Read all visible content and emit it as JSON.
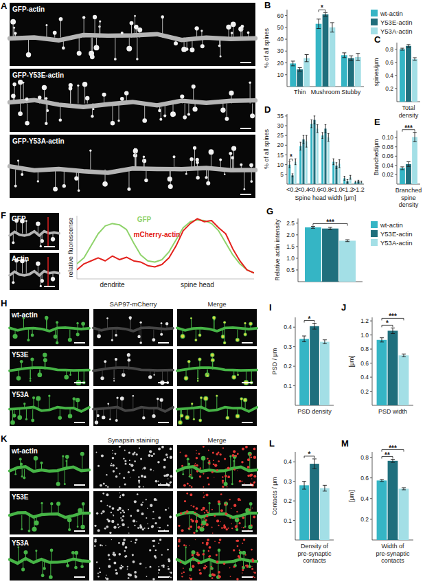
{
  "chart_data": [
    {
      "panel_label": "B",
      "type": "bar",
      "ylabel": "% of all spines",
      "categories": [
        "Thin",
        "Mushroom",
        "Stubby"
      ],
      "series": [
        {
          "name": "wt-actin",
          "color": "#35b5c5",
          "values": [
            19.5,
            53,
            26.5
          ],
          "errors": [
            2,
            4,
            2
          ]
        },
        {
          "name": "Y53E-actin",
          "color": "#1f6f7d",
          "values": [
            14.5,
            61,
            24
          ],
          "errors": [
            1.5,
            1.5,
            2
          ]
        },
        {
          "name": "Y53A-actin",
          "color": "#a3dfe6",
          "values": [
            24,
            50,
            25
          ],
          "errors": [
            3,
            4,
            3
          ]
        }
      ],
      "ylim": [
        0,
        65
      ],
      "yticks": [
        10,
        20,
        30,
        40,
        50,
        60
      ],
      "legend": "right",
      "significance": [
        {
          "label": "*",
          "series": [
            0,
            1
          ],
          "category": 1
        }
      ]
    },
    {
      "panel_label": "C",
      "type": "bar",
      "ylabel": "spines/μm",
      "xlabel": "Total density",
      "categories": [
        null
      ],
      "series": [
        {
          "color": "#35b5c5",
          "values": [
            0.8
          ],
          "errors": [
            0.015
          ]
        },
        {
          "color": "#1f6f7d",
          "values": [
            0.85
          ],
          "errors": [
            0.02
          ]
        },
        {
          "color": "#a3dfe6",
          "values": [
            0.65
          ],
          "errors": [
            0.02
          ]
        }
      ],
      "ylim": [
        0,
        0.9
      ],
      "yticks": [
        0.2,
        0.4,
        0.6,
        0.8
      ]
    },
    {
      "panel_label": "D",
      "type": "bar",
      "ylabel": "% of all spines",
      "xlabel": "Spine head width [μm]",
      "categories": [
        "<0.2",
        "<0.4",
        "<0.6",
        "<0.8",
        "<1.0",
        "<1.2",
        ">1.2"
      ],
      "series": [
        {
          "color": "#35b5c5",
          "values": [
            10,
            19.5,
            31,
            25,
            11.5,
            3,
            1
          ],
          "errors": [
            1.5,
            2,
            2,
            1.5,
            1.5,
            1,
            0.5
          ]
        },
        {
          "color": "#1f6f7d",
          "values": [
            4.5,
            23,
            33,
            28.5,
            9.5,
            1.5,
            1.5
          ],
          "errors": [
            0.8,
            2,
            2,
            2,
            1.5,
            0.8,
            0.5
          ]
        },
        {
          "color": "#a3dfe6",
          "values": [
            11.5,
            22,
            28.5,
            24,
            10.5,
            3.5,
            1
          ],
          "errors": [
            1.5,
            3,
            2,
            2,
            2,
            1,
            0.5
          ]
        }
      ],
      "ylim": [
        0,
        36
      ],
      "yticks": [
        5,
        10,
        15,
        20,
        25,
        30,
        35
      ],
      "significance": [
        {
          "label": "*",
          "series": [
            0,
            1
          ],
          "category": 0
        }
      ]
    },
    {
      "panel_label": "E",
      "type": "bar",
      "ylabel": "Branched/μm",
      "xlabel": "Branched spine density",
      "categories": [
        null
      ],
      "series": [
        {
          "color": "#35b5c5",
          "values": [
            0.034
          ],
          "errors": [
            0.003
          ]
        },
        {
          "color": "#1f6f7d",
          "values": [
            0.043
          ],
          "errors": [
            0.005
          ]
        },
        {
          "color": "#a3dfe6",
          "values": [
            0.101
          ],
          "errors": [
            0.01
          ]
        }
      ],
      "ylim": [
        0,
        0.115
      ],
      "yticks": [
        0.02,
        0.04,
        0.06,
        0.08,
        {
          "value": 0.1,
          "label": "0.10"
        }
      ],
      "significance": [
        {
          "label": "***",
          "series": [
            0,
            2
          ],
          "category": 0
        }
      ]
    },
    {
      "type": "line",
      "ylabel": "relative fluorescense",
      "annotations": [
        {
          "text": "dendrite",
          "x": 5
        },
        {
          "text": "spine head",
          "x": 17
        }
      ],
      "x": [
        0,
        1,
        2,
        3,
        4,
        5,
        6,
        7,
        8,
        9,
        10,
        11,
        12,
        13,
        14,
        15,
        16,
        17,
        18,
        19,
        20,
        21,
        22,
        23,
        24,
        25
      ],
      "series": [
        {
          "name": "GFP",
          "color": "#8fd36b",
          "values": [
            0.25,
            0.35,
            0.55,
            0.75,
            0.88,
            0.92,
            0.9,
            0.82,
            0.6,
            0.4,
            0.3,
            0.28,
            0.32,
            0.45,
            0.65,
            0.85,
            0.95,
            0.98,
            0.97,
            0.92,
            0.8,
            0.6,
            0.4,
            0.25,
            0.15,
            0.1
          ]
        },
        {
          "name": "mCherry-actin",
          "color": "#e3211c",
          "values": [
            0.15,
            0.25,
            0.3,
            0.35,
            0.3,
            0.38,
            0.32,
            0.36,
            0.3,
            0.28,
            0.22,
            0.2,
            0.24,
            0.35,
            0.55,
            0.8,
            0.92,
            1.0,
            0.95,
            0.97,
            0.85,
            0.75,
            0.5,
            0.3,
            0.15,
            0.1
          ]
        }
      ],
      "xlim": [
        0,
        25
      ],
      "ylim": [
        0,
        1.05
      ],
      "xticks": [],
      "yticks": [],
      "tick_labels": false
    },
    {
      "panel_label": "G",
      "type": "bar",
      "ylabel": "Relative actin intensity",
      "categories": [
        null
      ],
      "series": [
        {
          "name": "wt-actin",
          "color": "#35b5c5",
          "values": [
            2.32
          ],
          "errors": [
            0.04
          ]
        },
        {
          "name": "Y53E-actin",
          "color": "#1f6f7d",
          "values": [
            2.27
          ],
          "errors": [
            0.05
          ]
        },
        {
          "name": "Y53A-actin",
          "color": "#a3dfe6",
          "values": [
            1.75
          ],
          "errors": [
            0.04
          ]
        }
      ],
      "ylim": [
        0,
        2.7
      ],
      "yticks": [
        0.5,
        {
          "value": 1,
          "label": "1.0"
        },
        1.5,
        {
          "value": 2,
          "label": "2.0"
        },
        2.5
      ],
      "legend": "right",
      "significance": [
        {
          "label": "***",
          "series": [
            0,
            2
          ],
          "category": 0
        }
      ]
    },
    {
      "panel_label": "I",
      "type": "bar",
      "ylabel": "PSD / μm",
      "xlabel": "PSD density",
      "categories": [
        null
      ],
      "series": [
        {
          "color": "#35b5c5",
          "values": [
            0.34
          ],
          "errors": [
            0.015
          ]
        },
        {
          "color": "#1f6f7d",
          "values": [
            0.405
          ],
          "errors": [
            0.015
          ]
        },
        {
          "color": "#a3dfe6",
          "values": [
            0.325
          ],
          "errors": [
            0.01
          ]
        }
      ],
      "ylim": [
        0,
        0.45
      ],
      "yticks": [
        0.1,
        0.2,
        0.3,
        0.4
      ],
      "significance": [
        {
          "label": "*",
          "series": [
            0,
            1
          ],
          "category": 0
        }
      ]
    },
    {
      "panel_label": "J",
      "type": "bar",
      "ylabel": "[μm]",
      "xlabel": "PSD width",
      "categories": [
        null
      ],
      "series": [
        {
          "color": "#35b5c5",
          "values": [
            0.93
          ],
          "errors": [
            0.03
          ]
        },
        {
          "color": "#1f6f7d",
          "values": [
            1.06
          ],
          "errors": [
            0.04
          ]
        },
        {
          "color": "#a3dfe6",
          "values": [
            0.71
          ],
          "errors": [
            0.02
          ]
        }
      ],
      "ylim": [
        0,
        1.25
      ],
      "yticks": [
        0.2,
        0.4,
        0.6,
        0.8,
        {
          "value": 1,
          "label": "1.0"
        },
        1.2
      ],
      "significance": [
        {
          "label": "*",
          "series": [
            0,
            1
          ],
          "category": 0
        },
        {
          "label": "***",
          "series": [
            0,
            2
          ],
          "category": 0
        }
      ]
    },
    {
      "panel_label": "L",
      "type": "bar",
      "ylabel": "Contacts / μm",
      "xlabel": "Density of pre-synaptic contacts",
      "categories": [
        null
      ],
      "series": [
        {
          "color": "#35b5c5",
          "values": [
            0.28
          ],
          "errors": [
            0.02
          ]
        },
        {
          "color": "#1f6f7d",
          "values": [
            0.39
          ],
          "errors": [
            0.025
          ]
        },
        {
          "color": "#a3dfe6",
          "values": [
            0.265
          ],
          "errors": [
            0.015
          ]
        }
      ],
      "ylim": [
        0,
        0.45
      ],
      "yticks": [
        0.1,
        0.2,
        0.3,
        0.4
      ],
      "significance": [
        {
          "label": "*",
          "series": [
            0,
            1
          ],
          "category": 0
        }
      ]
    },
    {
      "panel_label": "M",
      "type": "bar",
      "ylabel": "[μm]",
      "xlabel": "Width of pre-synaptic contacts",
      "categories": [
        null
      ],
      "series": [
        {
          "color": "#35b5c5",
          "values": [
            0.575
          ],
          "errors": [
            0.01
          ]
        },
        {
          "color": "#1f6f7d",
          "values": [
            0.765
          ],
          "errors": [
            0.015
          ]
        },
        {
          "color": "#a3dfe6",
          "values": [
            0.495
          ],
          "errors": [
            0.01
          ]
        }
      ],
      "ylim": [
        0,
        0.85
      ],
      "yticks": [
        0.2,
        0.4,
        0.6,
        0.8
      ],
      "significance": [
        {
          "label": "**",
          "series": [
            0,
            1
          ],
          "category": 0
        },
        {
          "label": "***",
          "series": [
            0,
            2
          ],
          "category": 0
        }
      ]
    }
  ],
  "images": [
    {
      "panel_label": "A",
      "labels": [
        "GFP-actin",
        "GFP-Y53E-actin",
        "GFP-Y53A-actin"
      ]
    },
    {
      "panel_label": "F",
      "labels": [
        "GFP",
        "Actin"
      ]
    },
    {
      "panel_label": "H",
      "row_labels": [
        "wt-actin",
        "Y53E",
        "Y53A"
      ],
      "column_labels": [
        "SAP97-mCherry",
        "Merge"
      ]
    },
    {
      "panel_label": "K",
      "row_labels": [
        "wt-actin",
        "Y53E",
        "Y53A"
      ],
      "column_labels": [
        "Synapsin staining",
        "Merge"
      ]
    }
  ]
}
